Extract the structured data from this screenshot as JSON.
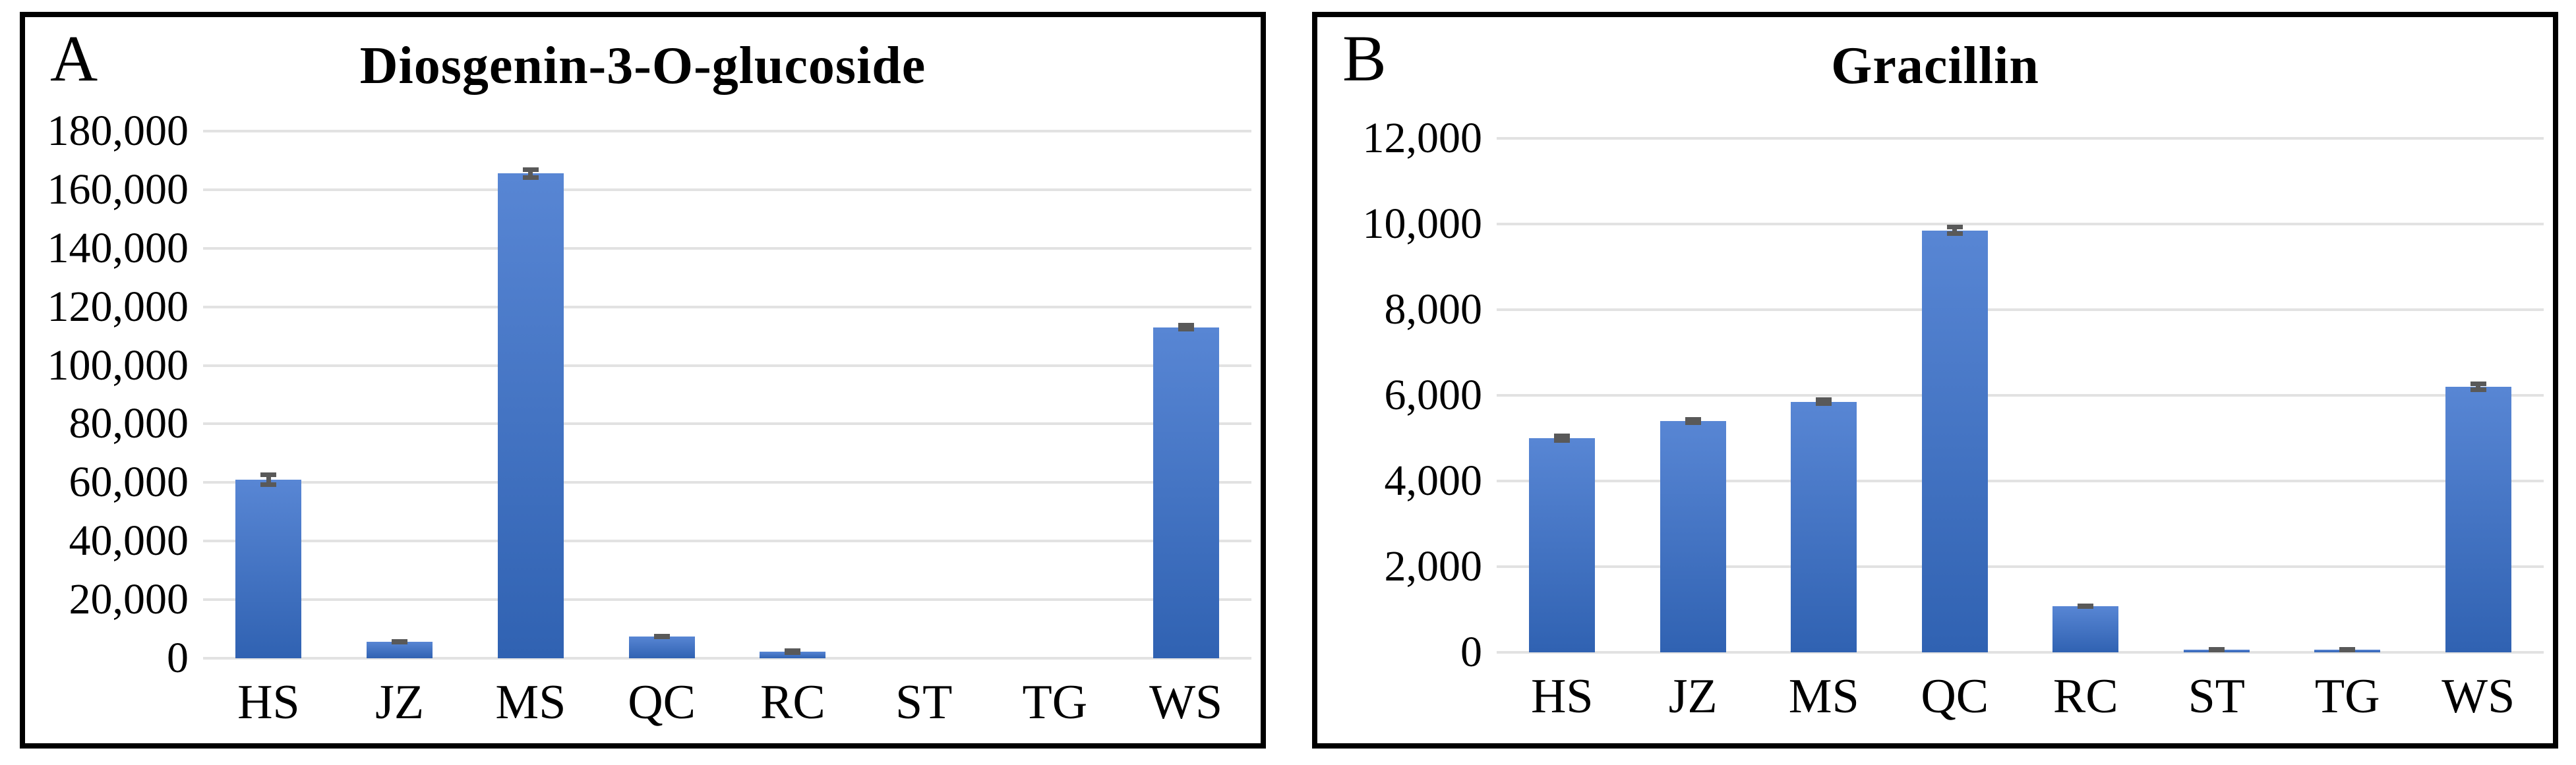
{
  "chart_data": [
    {
      "type": "bar",
      "panel_label": "A",
      "title": "Diosgenin-3-O-glucoside",
      "categories": [
        "HS",
        "JZ",
        "MS",
        "QC",
        "RC",
        "ST",
        "TG",
        "WS"
      ],
      "values": [
        61000,
        5700,
        165500,
        7400,
        2300,
        0,
        0,
        113000
      ],
      "errors": [
        2500,
        900,
        2200,
        700,
        400,
        0,
        0,
        1500
      ],
      "ylim": [
        0,
        180000
      ],
      "ytick_step": 20000,
      "ytick_labels": [
        "180,000",
        "160,000",
        "140,000",
        "120,000",
        "100,000",
        "80,000",
        "60,000",
        "40,000",
        "20,000",
        "0"
      ],
      "grid": true,
      "legend": null,
      "xlabel": "",
      "ylabel": ""
    },
    {
      "type": "bar",
      "panel_label": "B",
      "title": "Gracillin",
      "categories": [
        "HS",
        "JZ",
        "MS",
        "QC",
        "RC",
        "ST",
        "TG",
        "WS"
      ],
      "values": [
        5000,
        5400,
        5850,
        9850,
        1080,
        60,
        60,
        6200
      ],
      "errors": [
        110,
        90,
        100,
        130,
        60,
        40,
        40,
        120
      ],
      "ylim": [
        0,
        12000
      ],
      "ytick_step": 2000,
      "ytick_labels": [
        "12,000",
        "10,000",
        "8,000",
        "6,000",
        "4,000",
        "2,000",
        "0"
      ],
      "grid": true,
      "legend": null,
      "xlabel": "",
      "ylabel": ""
    }
  ],
  "colors": {
    "bar_gradient_top": "#5886d4",
    "bar_gradient_bottom": "#3062b2",
    "error_bar": "#595959",
    "gridline": "#e2e2e2",
    "panel_border": "#000000",
    "text": "#000000",
    "background": "#ffffff"
  }
}
